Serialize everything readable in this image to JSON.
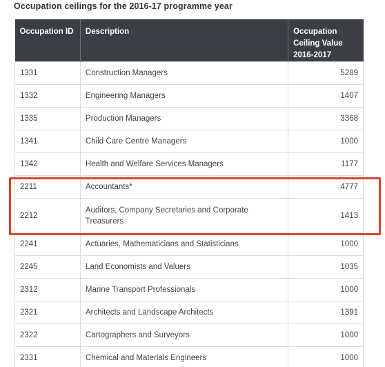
{
  "caption": "Occupation ceilings for the 2016-17 programme year",
  "table": {
    "headers": [
      "Occupation ID",
      "Description",
      "Occupation Ceiling Value 2016-2017"
    ],
    "rows": [
      {
        "id": "1331",
        "description": "Construction Managers",
        "value": "5289"
      },
      {
        "id": "1332",
        "description": "Engineering Managers",
        "value": "1407"
      },
      {
        "id": "1335",
        "description": "Production Managers",
        "value": "3368"
      },
      {
        "id": "1341",
        "description": "Child Care Centre Managers",
        "value": "1000"
      },
      {
        "id": "1342",
        "description": "Health and Welfare Services Managers",
        "value": "1177"
      },
      {
        "id": "2211",
        "description": "Accountants*",
        "value": "4777"
      },
      {
        "id": "2212",
        "description": "Auditors, Company Secretaries and Corporate Treasurers",
        "value": "1413"
      },
      {
        "id": "2241",
        "description": "Actuaries, Mathematicians and Statisticians",
        "value": "1000"
      },
      {
        "id": "2245",
        "description": "Land Economists and Valuers",
        "value": "1035"
      },
      {
        "id": "2312",
        "description": "Marine Transport Professionals",
        "value": "1000"
      },
      {
        "id": "2321",
        "description": "Architects and Landscape Architects",
        "value": "1391"
      },
      {
        "id": "2322",
        "description": "Cartographers and Surveyors",
        "value": "1000"
      },
      {
        "id": "2331",
        "description": "Chemical and Materials Engineers",
        "value": "1000"
      }
    ]
  },
  "highlight": {
    "color": "#d9432c",
    "rows": [
      "2211",
      "2212"
    ]
  }
}
